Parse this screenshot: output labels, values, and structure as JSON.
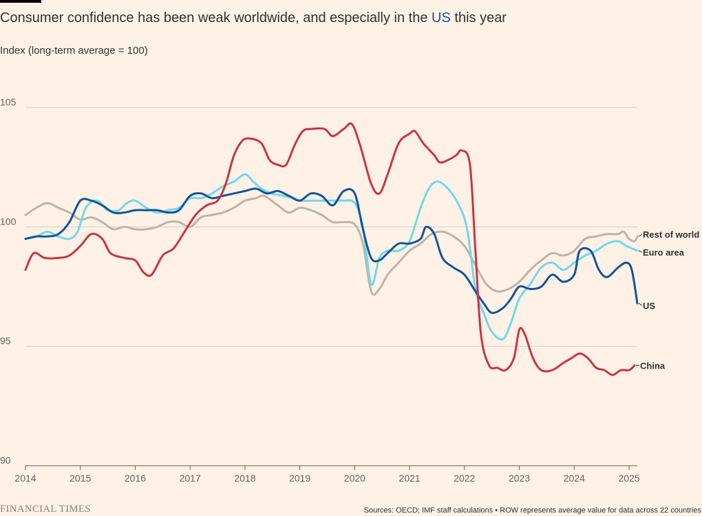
{
  "header": {
    "title_pre": "Consumer confidence has been weak worldwide, and especially in the ",
    "title_highlight": "US",
    "title_post": " this year",
    "subtitle": "Index (long-term average = 100)"
  },
  "footer": {
    "logo": "FINANCIAL TIMES",
    "source": "Sources: OECD; IMF staff calculations • ROW represents average value for data across 22 countries"
  },
  "colors": {
    "background": "#fff1e5",
    "grid": "#d8ccc1",
    "axis_text": "#66605c",
    "us": "#0f5499",
    "euro_area": "#70d8ec",
    "china": "#cc3340",
    "rest_of_world": "#bdb3ab",
    "title_highlight": "#0f5499"
  },
  "chart_data": {
    "type": "line",
    "title": "Consumer confidence has been weak worldwide, and especially in the US this year",
    "ylabel": "Index (long-term average = 100)",
    "xlim": [
      2014,
      2025.15
    ],
    "ylim": [
      90,
      105
    ],
    "y_ticks": [
      90,
      95,
      100,
      105
    ],
    "x_ticks": [
      "2014",
      "2015",
      "2016",
      "2017",
      "2018",
      "2019",
      "2020",
      "2021",
      "2022",
      "2023",
      "2024",
      "2025"
    ],
    "grid": true,
    "legend": "direct labels at line ends",
    "series": [
      {
        "name": "Rest of world",
        "color": "#bdb3ab",
        "points": [
          [
            2014.0,
            100.5
          ],
          [
            2014.2,
            100.8
          ],
          [
            2014.4,
            101.0
          ],
          [
            2014.6,
            100.8
          ],
          [
            2014.8,
            100.6
          ],
          [
            2015.0,
            100.3
          ],
          [
            2015.2,
            100.4
          ],
          [
            2015.4,
            100.2
          ],
          [
            2015.6,
            99.9
          ],
          [
            2015.8,
            100.0
          ],
          [
            2016.0,
            99.9
          ],
          [
            2016.2,
            99.9
          ],
          [
            2016.4,
            100.0
          ],
          [
            2016.6,
            100.2
          ],
          [
            2016.8,
            100.2
          ],
          [
            2017.0,
            100.0
          ],
          [
            2017.2,
            100.4
          ],
          [
            2017.4,
            100.5
          ],
          [
            2017.6,
            100.6
          ],
          [
            2017.8,
            100.8
          ],
          [
            2018.0,
            101.1
          ],
          [
            2018.2,
            101.2
          ],
          [
            2018.35,
            101.3
          ],
          [
            2018.6,
            100.9
          ],
          [
            2018.8,
            100.6
          ],
          [
            2019.0,
            100.8
          ],
          [
            2019.2,
            100.7
          ],
          [
            2019.4,
            100.5
          ],
          [
            2019.6,
            100.2
          ],
          [
            2019.8,
            100.2
          ],
          [
            2020.0,
            100.1
          ],
          [
            2020.15,
            99.3
          ],
          [
            2020.3,
            97.3
          ],
          [
            2020.45,
            97.4
          ],
          [
            2020.6,
            98.0
          ],
          [
            2020.8,
            98.5
          ],
          [
            2021.0,
            99.0
          ],
          [
            2021.2,
            99.3
          ],
          [
            2021.4,
            99.7
          ],
          [
            2021.6,
            99.8
          ],
          [
            2021.8,
            99.6
          ],
          [
            2022.0,
            99.2
          ],
          [
            2022.2,
            98.4
          ],
          [
            2022.4,
            97.6
          ],
          [
            2022.6,
            97.3
          ],
          [
            2022.8,
            97.4
          ],
          [
            2023.0,
            97.7
          ],
          [
            2023.2,
            98.2
          ],
          [
            2023.4,
            98.6
          ],
          [
            2023.6,
            98.9
          ],
          [
            2023.8,
            98.8
          ],
          [
            2024.0,
            99.0
          ],
          [
            2024.2,
            99.5
          ],
          [
            2024.4,
            99.6
          ],
          [
            2024.6,
            99.7
          ],
          [
            2024.8,
            99.7
          ],
          [
            2024.9,
            99.8
          ],
          [
            2025.0,
            99.5
          ],
          [
            2025.1,
            99.4
          ],
          [
            2025.15,
            99.6
          ]
        ]
      },
      {
        "name": "Euro area",
        "color": "#70d8ec",
        "points": [
          [
            2014.0,
            99.5
          ],
          [
            2014.2,
            99.6
          ],
          [
            2014.4,
            99.8
          ],
          [
            2014.6,
            99.6
          ],
          [
            2014.8,
            99.5
          ],
          [
            2014.95,
            99.8
          ],
          [
            2015.1,
            100.8
          ],
          [
            2015.3,
            101.1
          ],
          [
            2015.5,
            100.7
          ],
          [
            2015.7,
            100.7
          ],
          [
            2015.85,
            101.0
          ],
          [
            2016.0,
            101.1
          ],
          [
            2016.2,
            100.8
          ],
          [
            2016.4,
            100.6
          ],
          [
            2016.6,
            100.7
          ],
          [
            2016.8,
            100.8
          ],
          [
            2017.0,
            101.2
          ],
          [
            2017.2,
            101.2
          ],
          [
            2017.4,
            101.4
          ],
          [
            2017.6,
            101.7
          ],
          [
            2017.8,
            101.9
          ],
          [
            2018.0,
            102.2
          ],
          [
            2018.15,
            101.9
          ],
          [
            2018.3,
            101.6
          ],
          [
            2018.5,
            101.4
          ],
          [
            2018.7,
            101.3
          ],
          [
            2018.9,
            101.2
          ],
          [
            2019.0,
            101.1
          ],
          [
            2019.2,
            101.1
          ],
          [
            2019.4,
            101.1
          ],
          [
            2019.6,
            101.1
          ],
          [
            2019.8,
            101.1
          ],
          [
            2020.0,
            101.0
          ],
          [
            2020.15,
            100.0
          ],
          [
            2020.3,
            97.6
          ],
          [
            2020.45,
            98.7
          ],
          [
            2020.6,
            99.0
          ],
          [
            2020.8,
            99.0
          ],
          [
            2021.0,
            99.4
          ],
          [
            2021.2,
            100.8
          ],
          [
            2021.35,
            101.6
          ],
          [
            2021.5,
            101.9
          ],
          [
            2021.7,
            101.6
          ],
          [
            2021.9,
            100.9
          ],
          [
            2022.05,
            99.9
          ],
          [
            2022.2,
            97.4
          ],
          [
            2022.35,
            96.4
          ],
          [
            2022.5,
            95.6
          ],
          [
            2022.7,
            95.3
          ],
          [
            2022.85,
            96.0
          ],
          [
            2023.0,
            97.0
          ],
          [
            2023.2,
            97.6
          ],
          [
            2023.4,
            98.3
          ],
          [
            2023.6,
            98.5
          ],
          [
            2023.8,
            98.2
          ],
          [
            2024.0,
            98.5
          ],
          [
            2024.2,
            98.8
          ],
          [
            2024.4,
            99.0
          ],
          [
            2024.6,
            99.3
          ],
          [
            2024.8,
            99.4
          ],
          [
            2024.95,
            99.2
          ],
          [
            2025.15,
            99.0
          ]
        ]
      },
      {
        "name": "US",
        "color": "#0f5499",
        "points": [
          [
            2014.0,
            99.5
          ],
          [
            2014.2,
            99.6
          ],
          [
            2014.4,
            99.6
          ],
          [
            2014.6,
            99.7
          ],
          [
            2014.8,
            100.2
          ],
          [
            2015.0,
            101.1
          ],
          [
            2015.2,
            101.1
          ],
          [
            2015.4,
            100.9
          ],
          [
            2015.6,
            100.6
          ],
          [
            2015.8,
            100.6
          ],
          [
            2016.0,
            100.7
          ],
          [
            2016.2,
            100.7
          ],
          [
            2016.4,
            100.7
          ],
          [
            2016.6,
            100.6
          ],
          [
            2016.8,
            100.7
          ],
          [
            2017.0,
            101.3
          ],
          [
            2017.2,
            101.4
          ],
          [
            2017.4,
            101.2
          ],
          [
            2017.6,
            101.3
          ],
          [
            2017.8,
            101.4
          ],
          [
            2018.0,
            101.5
          ],
          [
            2018.2,
            101.6
          ],
          [
            2018.4,
            101.4
          ],
          [
            2018.6,
            101.5
          ],
          [
            2018.8,
            101.3
          ],
          [
            2019.0,
            101.1
          ],
          [
            2019.2,
            101.4
          ],
          [
            2019.4,
            101.3
          ],
          [
            2019.6,
            100.9
          ],
          [
            2019.8,
            101.5
          ],
          [
            2020.0,
            101.4
          ],
          [
            2020.15,
            99.9
          ],
          [
            2020.3,
            98.7
          ],
          [
            2020.45,
            98.6
          ],
          [
            2020.6,
            98.9
          ],
          [
            2020.8,
            99.3
          ],
          [
            2021.0,
            99.3
          ],
          [
            2021.2,
            99.5
          ],
          [
            2021.3,
            100.0
          ],
          [
            2021.45,
            99.7
          ],
          [
            2021.6,
            98.7
          ],
          [
            2021.8,
            98.3
          ],
          [
            2022.0,
            98.0
          ],
          [
            2022.2,
            97.3
          ],
          [
            2022.35,
            96.8
          ],
          [
            2022.5,
            96.4
          ],
          [
            2022.7,
            96.6
          ],
          [
            2022.85,
            97.0
          ],
          [
            2023.0,
            97.5
          ],
          [
            2023.2,
            97.4
          ],
          [
            2023.4,
            97.5
          ],
          [
            2023.6,
            98.0
          ],
          [
            2023.8,
            97.7
          ],
          [
            2024.0,
            98.0
          ],
          [
            2024.1,
            99.0
          ],
          [
            2024.3,
            99.0
          ],
          [
            2024.45,
            98.2
          ],
          [
            2024.6,
            97.9
          ],
          [
            2024.8,
            98.3
          ],
          [
            2024.95,
            98.5
          ],
          [
            2025.05,
            98.2
          ],
          [
            2025.15,
            96.8
          ]
        ]
      },
      {
        "name": "China",
        "color": "#cc3340",
        "points": [
          [
            2014.0,
            98.2
          ],
          [
            2014.15,
            98.9
          ],
          [
            2014.35,
            98.7
          ],
          [
            2014.6,
            98.7
          ],
          [
            2014.8,
            98.8
          ],
          [
            2015.0,
            99.2
          ],
          [
            2015.2,
            99.7
          ],
          [
            2015.4,
            99.5
          ],
          [
            2015.55,
            98.9
          ],
          [
            2015.8,
            98.7
          ],
          [
            2016.0,
            98.6
          ],
          [
            2016.15,
            98.1
          ],
          [
            2016.3,
            98.0
          ],
          [
            2016.5,
            98.8
          ],
          [
            2016.7,
            99.1
          ],
          [
            2016.9,
            99.8
          ],
          [
            2017.1,
            100.5
          ],
          [
            2017.3,
            100.9
          ],
          [
            2017.5,
            101.1
          ],
          [
            2017.65,
            101.8
          ],
          [
            2017.8,
            103.0
          ],
          [
            2017.95,
            103.6
          ],
          [
            2018.1,
            103.7
          ],
          [
            2018.3,
            103.5
          ],
          [
            2018.45,
            102.8
          ],
          [
            2018.6,
            102.6
          ],
          [
            2018.75,
            102.6
          ],
          [
            2018.9,
            103.4
          ],
          [
            2019.05,
            104.0
          ],
          [
            2019.2,
            104.1
          ],
          [
            2019.45,
            104.1
          ],
          [
            2019.6,
            103.8
          ],
          [
            2019.8,
            104.1
          ],
          [
            2019.95,
            104.3
          ],
          [
            2020.1,
            103.4
          ],
          [
            2020.3,
            101.8
          ],
          [
            2020.45,
            101.4
          ],
          [
            2020.6,
            102.2
          ],
          [
            2020.8,
            103.5
          ],
          [
            2021.0,
            103.9
          ],
          [
            2021.1,
            104.0
          ],
          [
            2021.25,
            103.5
          ],
          [
            2021.45,
            103.0
          ],
          [
            2021.55,
            102.7
          ],
          [
            2021.7,
            102.8
          ],
          [
            2021.85,
            103.0
          ],
          [
            2021.95,
            103.2
          ],
          [
            2022.1,
            102.6
          ],
          [
            2022.2,
            99.0
          ],
          [
            2022.3,
            95.5
          ],
          [
            2022.45,
            94.2
          ],
          [
            2022.6,
            94.1
          ],
          [
            2022.75,
            94.0
          ],
          [
            2022.9,
            94.5
          ],
          [
            2023.0,
            95.7
          ],
          [
            2023.1,
            95.5
          ],
          [
            2023.25,
            94.5
          ],
          [
            2023.4,
            94.0
          ],
          [
            2023.6,
            94.0
          ],
          [
            2023.8,
            94.3
          ],
          [
            2023.95,
            94.5
          ],
          [
            2024.1,
            94.7
          ],
          [
            2024.25,
            94.5
          ],
          [
            2024.4,
            94.1
          ],
          [
            2024.55,
            94.0
          ],
          [
            2024.7,
            93.8
          ],
          [
            2024.85,
            94.0
          ],
          [
            2025.0,
            94.0
          ],
          [
            2025.1,
            94.2
          ]
        ]
      }
    ]
  }
}
